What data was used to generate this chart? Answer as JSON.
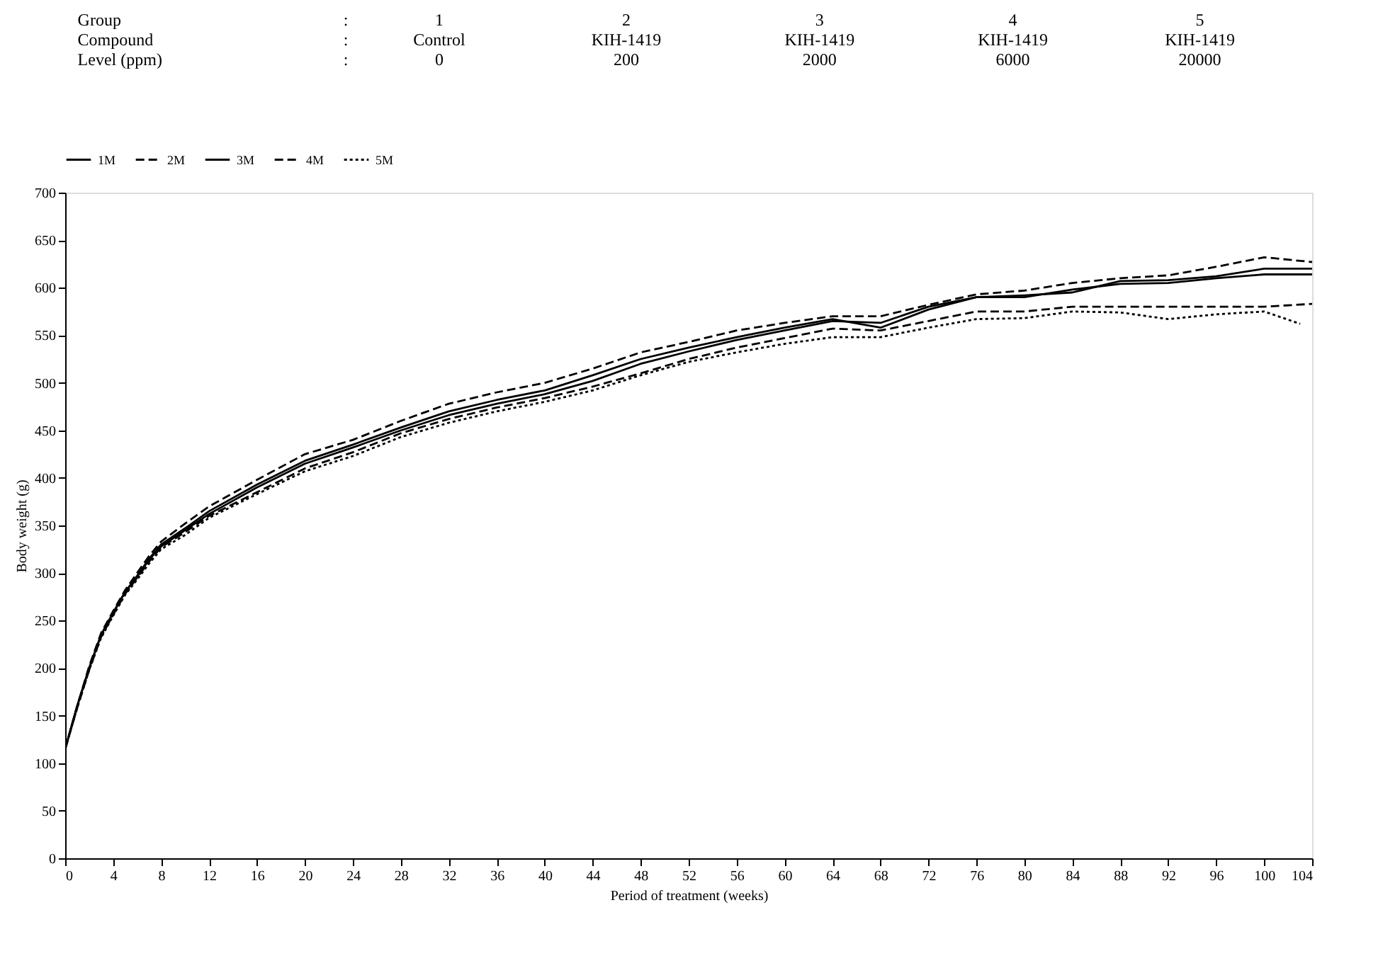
{
  "chart_data": {
    "type": "line",
    "xlabel": "Period of treatment (weeks)",
    "ylabel": "Body weight (g)",
    "xlim": [
      0,
      104
    ],
    "xticks": [
      0,
      4,
      8,
      12,
      16,
      20,
      24,
      28,
      32,
      36,
      40,
      44,
      48,
      52,
      56,
      60,
      64,
      68,
      72,
      76,
      80,
      84,
      88,
      92,
      96,
      100,
      104
    ],
    "ylim": [
      0,
      700
    ],
    "yticks": [
      0,
      50,
      100,
      150,
      200,
      250,
      300,
      350,
      400,
      450,
      500,
      550,
      600,
      650,
      700
    ],
    "grid": false,
    "legend": "top",
    "marker": "none",
    "annotations": [
      "Group",
      ":",
      "1",
      "2",
      "3",
      "4",
      "5",
      "Compound",
      ":",
      "Control",
      "KIH-1419",
      "KIH-1419",
      "KIH-1419",
      "KIH-1419",
      "Level (ppm)",
      ":",
      "0",
      "200",
      "2000",
      "6000",
      "20000"
    ],
    "x": [
      0,
      1,
      2,
      3,
      4,
      5,
      6,
      7,
      8,
      10,
      12,
      16,
      20,
      24,
      28,
      32,
      36,
      40,
      44,
      48,
      52,
      56,
      60,
      64,
      68,
      72,
      76,
      80,
      84,
      88,
      92,
      96,
      100,
      104
    ],
    "series": [
      {
        "name": "1M",
        "color": "#000000",
        "line_style": "solid",
        "values": [
          115,
          160,
          200,
          235,
          258,
          280,
          297,
          315,
          330,
          347,
          365,
          393,
          418,
          435,
          453,
          470,
          482,
          492,
          508,
          525,
          537,
          548,
          558,
          567,
          558,
          577,
          590,
          592,
          595,
          607,
          608,
          612,
          620,
          620
        ]
      },
      {
        "name": "2M",
        "color": "#000000",
        "line_style": "dashed",
        "values": [
          115,
          160,
          202,
          237,
          260,
          282,
          300,
          318,
          333,
          352,
          370,
          398,
          425,
          440,
          460,
          478,
          490,
          500,
          515,
          532,
          543,
          555,
          563,
          570,
          570,
          582,
          593,
          597,
          605,
          610,
          613,
          622,
          632,
          627
        ]
      },
      {
        "name": "3M",
        "color": "#000000",
        "line_style": "solid",
        "values": [
          115,
          160,
          200,
          235,
          258,
          280,
          296,
          314,
          328,
          345,
          362,
          390,
          415,
          432,
          450,
          466,
          478,
          488,
          502,
          520,
          533,
          545,
          555,
          565,
          563,
          580,
          590,
          590,
          598,
          604,
          605,
          610,
          614,
          614
        ]
      },
      {
        "name": "4M",
        "color": "#000000",
        "line_style": "dashed",
        "values": [
          115,
          158,
          198,
          233,
          256,
          278,
          295,
          312,
          327,
          343,
          360,
          385,
          410,
          427,
          447,
          462,
          474,
          484,
          496,
          510,
          525,
          537,
          547,
          557,
          555,
          565,
          575,
          575,
          580,
          580,
          580,
          580,
          580,
          583
        ]
      },
      {
        "name": "5M",
        "color": "#000000",
        "line_style": "dotted",
        "x": [
          0,
          1,
          2,
          3,
          4,
          5,
          6,
          7,
          8,
          10,
          12,
          16,
          20,
          24,
          28,
          32,
          36,
          40,
          44,
          48,
          52,
          56,
          60,
          64,
          68,
          72,
          76,
          80,
          84,
          88,
          92,
          96,
          100,
          103
        ],
        "values": [
          115,
          158,
          198,
          232,
          255,
          277,
          293,
          310,
          325,
          340,
          358,
          383,
          407,
          423,
          443,
          458,
          470,
          480,
          492,
          508,
          522,
          532,
          541,
          548,
          548,
          558,
          567,
          568,
          575,
          574,
          567,
          572,
          575,
          562
        ]
      }
    ]
  }
}
